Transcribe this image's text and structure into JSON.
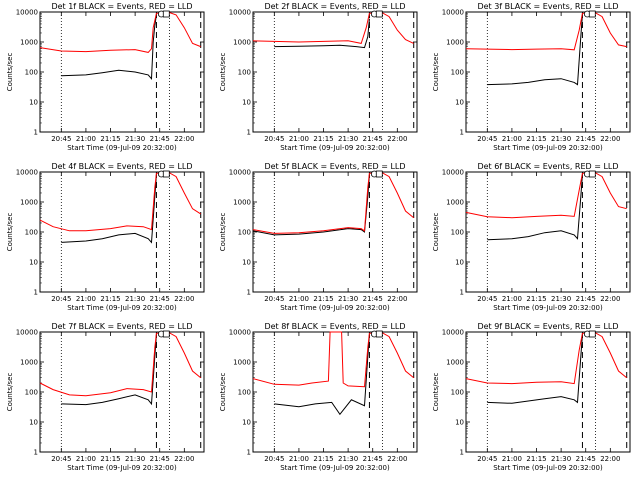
{
  "figure_date": "09-Jul-09",
  "xlabel": "Start Time (09-Jul-09 20:32:00)",
  "ylabel": "Counts/sec",
  "colors": {
    "events": "#000000",
    "lld": "#ff0000",
    "axes": "#000000",
    "background": "#ffffff"
  },
  "x_tick_labels": [
    "20:45",
    "21:00",
    "21:15",
    "21:30",
    "21:45",
    "22:00"
  ],
  "y_tick_labels": [
    "1",
    "10",
    "100",
    "1000",
    "10000"
  ],
  "chart_data": [
    {
      "type": "line",
      "title": "Det 1f BLACK = Events, RED = LLD",
      "yscale": "log",
      "ylim": [
        1,
        10000
      ],
      "xlim": [
        "20:32",
        "22:12"
      ],
      "series": [
        {
          "color": "#000000",
          "x": [
            "20:45",
            "21:00",
            "21:10",
            "21:20",
            "21:30",
            "21:38",
            "21:40",
            "21:41",
            "21:42",
            "21:43"
          ],
          "values": [
            75,
            80,
            95,
            115,
            100,
            80,
            60,
            1000,
            3500,
            8000
          ]
        },
        {
          "color": "#ff0000",
          "x": [
            "20:32",
            "20:45",
            "21:00",
            "21:15",
            "21:30",
            "21:38",
            "21:40",
            "21:41",
            "21:43",
            "21:50",
            "21:55",
            "22:00",
            "22:05",
            "22:10"
          ],
          "values": [
            650,
            500,
            480,
            530,
            560,
            450,
            600,
            3000,
            9000,
            10000,
            8000,
            3000,
            900,
            700
          ]
        }
      ],
      "vlines_dotted": [
        "20:45",
        "21:51"
      ],
      "vlines_dashed": [
        "21:43",
        "22:10"
      ],
      "markers": [
        "21:46",
        "21:49"
      ]
    },
    {
      "type": "line",
      "title": "Det 2f BLACK = Events, RED = LLD",
      "yscale": "log",
      "ylim": [
        1,
        10000
      ],
      "xlim": [
        "20:32",
        "22:12"
      ],
      "series": [
        {
          "color": "#000000",
          "x": [
            "20:45",
            "21:00",
            "21:15",
            "21:25",
            "21:35",
            "21:40",
            "21:42",
            "21:43"
          ],
          "values": [
            700,
            720,
            750,
            780,
            700,
            650,
            1500,
            6000
          ]
        },
        {
          "color": "#ff0000",
          "x": [
            "20:32",
            "20:45",
            "21:00",
            "21:15",
            "21:30",
            "21:38",
            "21:41",
            "21:43",
            "21:50",
            "21:55",
            "22:00",
            "22:05",
            "22:10"
          ],
          "values": [
            1100,
            1050,
            1000,
            1050,
            1100,
            900,
            3000,
            9000,
            10000,
            7000,
            2500,
            1200,
            900
          ]
        }
      ],
      "vlines_dotted": [
        "20:45",
        "21:51"
      ],
      "vlines_dashed": [
        "21:43",
        "22:10"
      ],
      "markers": [
        "21:46",
        "21:49"
      ]
    },
    {
      "type": "line",
      "title": "Det 3f BLACK = Events, RED = LLD",
      "yscale": "log",
      "ylim": [
        1,
        10000
      ],
      "xlim": [
        "20:32",
        "22:12"
      ],
      "series": [
        {
          "color": "#000000",
          "x": [
            "20:45",
            "21:00",
            "21:10",
            "21:20",
            "21:30",
            "21:38",
            "21:40",
            "21:42",
            "21:43"
          ],
          "values": [
            38,
            40,
            45,
            55,
            60,
            45,
            38,
            1500,
            8000
          ]
        },
        {
          "color": "#ff0000",
          "x": [
            "20:32",
            "20:45",
            "21:00",
            "21:15",
            "21:30",
            "21:38",
            "21:41",
            "21:43",
            "21:50",
            "21:55",
            "22:00",
            "22:05",
            "22:10"
          ],
          "values": [
            600,
            580,
            560,
            580,
            600,
            550,
            2500,
            9000,
            10000,
            7000,
            2000,
            800,
            700
          ]
        }
      ],
      "vlines_dotted": [
        "20:45",
        "21:51"
      ],
      "vlines_dashed": [
        "21:43",
        "22:10"
      ],
      "markers": [
        "21:46",
        "21:49"
      ]
    },
    {
      "type": "line",
      "title": "Det 4f BLACK = Events, RED = LLD",
      "yscale": "log",
      "ylim": [
        1,
        10000
      ],
      "xlim": [
        "20:32",
        "22:12"
      ],
      "series": [
        {
          "color": "#000000",
          "x": [
            "20:45",
            "21:00",
            "21:10",
            "21:20",
            "21:30",
            "21:38",
            "21:40",
            "21:42",
            "21:43"
          ],
          "values": [
            45,
            50,
            60,
            80,
            90,
            60,
            45,
            1500,
            8000
          ]
        },
        {
          "color": "#ff0000",
          "x": [
            "20:32",
            "20:40",
            "20:50",
            "21:00",
            "21:15",
            "21:25",
            "21:35",
            "21:40",
            "21:42",
            "21:43",
            "21:50",
            "21:55",
            "22:00",
            "22:05",
            "22:10"
          ],
          "values": [
            250,
            150,
            110,
            110,
            130,
            160,
            150,
            120,
            3000,
            9000,
            10000,
            7000,
            2000,
            600,
            400
          ]
        }
      ],
      "vlines_dotted": [
        "20:45",
        "21:51"
      ],
      "vlines_dashed": [
        "21:43",
        "22:10"
      ],
      "markers": [
        "21:46",
        "21:49"
      ]
    },
    {
      "type": "line",
      "title": "Det 5f BLACK = Events, RED = LLD",
      "yscale": "log",
      "ylim": [
        1,
        10000
      ],
      "xlim": [
        "20:32",
        "22:12"
      ],
      "series": [
        {
          "color": "#000000",
          "x": [
            "20:32",
            "20:45",
            "21:00",
            "21:15",
            "21:30",
            "21:38",
            "21:40",
            "21:42",
            "21:43"
          ],
          "values": [
            110,
            80,
            85,
            100,
            130,
            120,
            100,
            1500,
            8000
          ]
        },
        {
          "color": "#ff0000",
          "x": [
            "20:32",
            "20:45",
            "21:00",
            "21:15",
            "21:30",
            "21:38",
            "21:40",
            "21:42",
            "21:43",
            "21:50",
            "21:55",
            "22:00",
            "22:05",
            "22:10"
          ],
          "values": [
            120,
            90,
            95,
            110,
            140,
            130,
            110,
            3000,
            9000,
            10000,
            7000,
            2000,
            500,
            300
          ]
        }
      ],
      "vlines_dotted": [
        "20:45",
        "21:51"
      ],
      "vlines_dashed": [
        "21:43",
        "22:10"
      ],
      "markers": [
        "21:46",
        "21:49"
      ]
    },
    {
      "type": "line",
      "title": "Det 6f BLACK = Events, RED = LLD",
      "yscale": "log",
      "ylim": [
        1,
        10000
      ],
      "xlim": [
        "20:32",
        "22:12"
      ],
      "series": [
        {
          "color": "#000000",
          "x": [
            "20:45",
            "21:00",
            "21:10",
            "21:20",
            "21:30",
            "21:38",
            "21:40",
            "21:42",
            "21:43"
          ],
          "values": [
            55,
            60,
            70,
            95,
            110,
            80,
            60,
            1500,
            8000
          ]
        },
        {
          "color": "#ff0000",
          "x": [
            "20:32",
            "20:45",
            "21:00",
            "21:15",
            "21:30",
            "21:38",
            "21:41",
            "21:43",
            "21:50",
            "21:55",
            "22:00",
            "22:05",
            "22:10"
          ],
          "values": [
            450,
            320,
            300,
            330,
            360,
            330,
            2500,
            9000,
            10000,
            7000,
            2000,
            700,
            600
          ]
        }
      ],
      "vlines_dotted": [
        "20:45",
        "21:51"
      ],
      "vlines_dashed": [
        "21:43",
        "22:10"
      ],
      "markers": [
        "21:46",
        "21:49"
      ]
    },
    {
      "type": "line",
      "title": "Det 7f BLACK = Events, RED = LLD",
      "yscale": "log",
      "ylim": [
        1,
        10000
      ],
      "xlim": [
        "20:32",
        "22:12"
      ],
      "series": [
        {
          "color": "#000000",
          "x": [
            "20:45",
            "21:00",
            "21:10",
            "21:20",
            "21:30",
            "21:38",
            "21:40",
            "21:42",
            "21:43"
          ],
          "values": [
            40,
            38,
            45,
            60,
            80,
            55,
            40,
            1500,
            8000
          ]
        },
        {
          "color": "#ff0000",
          "x": [
            "20:32",
            "20:40",
            "20:50",
            "21:00",
            "21:15",
            "21:25",
            "21:35",
            "21:40",
            "21:42",
            "21:43",
            "21:50",
            "21:55",
            "22:00",
            "22:05",
            "22:10"
          ],
          "values": [
            200,
            120,
            80,
            75,
            95,
            130,
            120,
            100,
            3000,
            9000,
            10000,
            7000,
            2000,
            500,
            300
          ]
        }
      ],
      "vlines_dotted": [
        "20:45",
        "21:51"
      ],
      "vlines_dashed": [
        "21:43",
        "22:10"
      ],
      "markers": [
        "21:46",
        "21:49"
      ]
    },
    {
      "type": "line",
      "title": "Det 8f BLACK = Events, RED = LLD",
      "yscale": "log",
      "ylim": [
        1,
        10000
      ],
      "xlim": [
        "20:32",
        "22:12"
      ],
      "series": [
        {
          "color": "#000000",
          "x": [
            "20:45",
            "21:00",
            "21:10",
            "21:20",
            "21:25",
            "21:32",
            "21:40",
            "21:42",
            "21:43"
          ],
          "values": [
            40,
            32,
            40,
            45,
            18,
            55,
            35,
            1500,
            8000
          ]
        },
        {
          "color": "#ff0000",
          "x": [
            "20:32",
            "20:45",
            "21:00",
            "21:08",
            "21:18",
            "21:19",
            "21:26",
            "21:27",
            "21:30",
            "21:40",
            "21:42",
            "21:43",
            "21:50",
            "21:55",
            "22:00",
            "22:05",
            "22:10"
          ],
          "values": [
            280,
            180,
            170,
            200,
            230,
            10000,
            10000,
            200,
            160,
            150,
            3000,
            9000,
            10000,
            7000,
            2000,
            500,
            300
          ]
        }
      ],
      "vlines_dotted": [
        "20:45",
        "21:51"
      ],
      "vlines_dashed": [
        "21:43",
        "22:10"
      ],
      "markers": [
        "21:46",
        "21:49"
      ]
    },
    {
      "type": "line",
      "title": "Det 9f BLACK = Events, RED = LLD",
      "yscale": "log",
      "ylim": [
        1,
        10000
      ],
      "xlim": [
        "20:32",
        "22:12"
      ],
      "series": [
        {
          "color": "#000000",
          "x": [
            "20:45",
            "21:00",
            "21:10",
            "21:20",
            "21:30",
            "21:38",
            "21:40",
            "21:42",
            "21:43"
          ],
          "values": [
            45,
            42,
            50,
            60,
            70,
            55,
            45,
            1500,
            8000
          ]
        },
        {
          "color": "#ff0000",
          "x": [
            "20:32",
            "20:45",
            "21:00",
            "21:15",
            "21:30",
            "21:38",
            "21:41",
            "21:43",
            "21:50",
            "21:55",
            "22:00",
            "22:05",
            "22:10"
          ],
          "values": [
            280,
            200,
            190,
            210,
            220,
            190,
            2500,
            9000,
            10000,
            7000,
            2000,
            500,
            300
          ]
        }
      ],
      "vlines_dotted": [
        "20:45",
        "21:51"
      ],
      "vlines_dashed": [
        "21:43",
        "22:10"
      ],
      "markers": [
        "21:46",
        "21:49"
      ]
    }
  ]
}
